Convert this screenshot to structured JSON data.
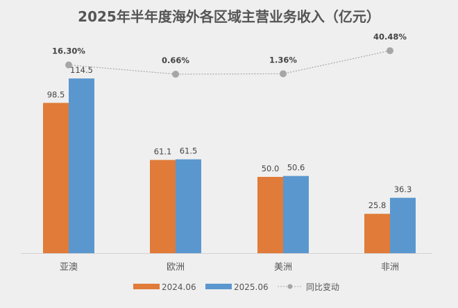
{
  "chart_data": {
    "type": "bar",
    "title": "2025年半年度海外各区域主营业务收入（亿元）",
    "categories": [
      "亚澳",
      "欧洲",
      "美洲",
      "非洲"
    ],
    "series": [
      {
        "name": "2024.06",
        "values": [
          98.5,
          61.1,
          50.0,
          25.8
        ],
        "labels": [
          "98.5",
          "61.1",
          "50.0",
          "25.8"
        ],
        "color": "#e07b39"
      },
      {
        "name": "2025.06",
        "values": [
          114.5,
          61.5,
          50.6,
          36.3
        ],
        "labels": [
          "114.5",
          "61.5",
          "50.6",
          "36.3"
        ],
        "color": "#5b97cf"
      }
    ],
    "line_series": {
      "name": "同比变动",
      "type": "line",
      "values": [
        16.3,
        0.66,
        1.36,
        40.48
      ],
      "labels": [
        "16.30%",
        "0.66%",
        "1.36%",
        "40.48%"
      ],
      "color": "#a6a6a6",
      "style": "dotted"
    },
    "legend_position": "bottom",
    "grid": false
  }
}
